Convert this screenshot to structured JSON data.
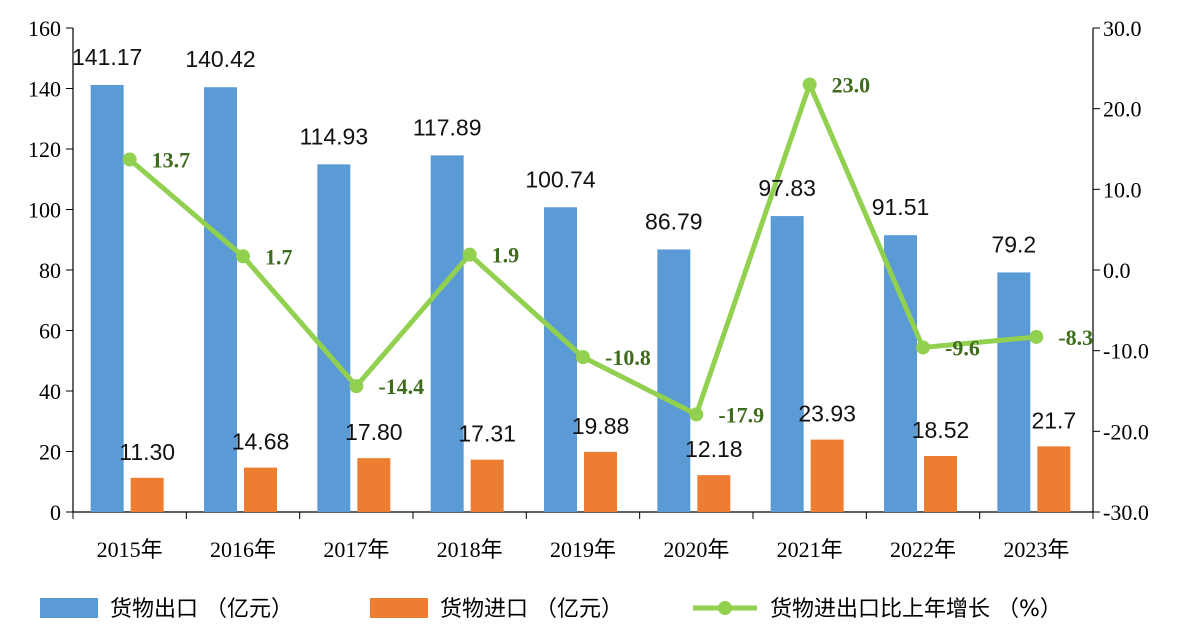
{
  "chart_data": {
    "type": "bar",
    "categories": [
      "2015年",
      "2016年",
      "2017年",
      "2018年",
      "2019年",
      "2020年",
      "2021年",
      "2022年",
      "2023年"
    ],
    "series": [
      {
        "name": "货物出口（亿元）",
        "kind": "bar",
        "axis": "left",
        "color": "#5b9bd5",
        "values": [
          141.17,
          140.42,
          114.93,
          117.89,
          100.74,
          86.79,
          97.83,
          91.51,
          79.2
        ],
        "labels": [
          "141.17",
          "140.42",
          "114.93",
          "117.89",
          "100.74",
          "86.79",
          "97.83",
          "91.51",
          "79.2"
        ]
      },
      {
        "name": "货物进口（亿元）",
        "kind": "bar",
        "axis": "left",
        "color": "#ed7d31",
        "values": [
          11.3,
          14.68,
          17.8,
          17.31,
          19.88,
          12.18,
          23.93,
          18.52,
          21.7
        ],
        "labels": [
          "11.30",
          "14.68",
          "17.80",
          "17.31",
          "19.88",
          "12.18",
          "23.93",
          "18.52",
          "21.7"
        ]
      },
      {
        "name": "货物进出口比上年增长（%）",
        "kind": "line",
        "axis": "right",
        "color": "#92d050",
        "values": [
          13.7,
          1.7,
          -14.4,
          1.9,
          -10.8,
          -17.9,
          23.0,
          -9.6,
          -8.3
        ],
        "labels": [
          "13.7",
          "1.7",
          "-14.4",
          "1.9",
          "-10.8",
          "-17.9",
          "23.0",
          "-9.6",
          "-8.3"
        ]
      }
    ],
    "y_left": {
      "min": 0,
      "max": 160,
      "ticks": [
        "0",
        "20",
        "40",
        "60",
        "80",
        "100",
        "120",
        "140",
        "160"
      ]
    },
    "y_right": {
      "min": -30,
      "max": 30,
      "ticks": [
        "-30.0",
        "-20.0",
        "-10.0",
        "0.0",
        "10.0",
        "20.0",
        "30.0"
      ]
    },
    "grid": false,
    "legend_position": "bottom",
    "legend": [
      "货物出口 （亿元）",
      "货物进口 （亿元）",
      "货物进出口比上年增长 （%）"
    ]
  }
}
